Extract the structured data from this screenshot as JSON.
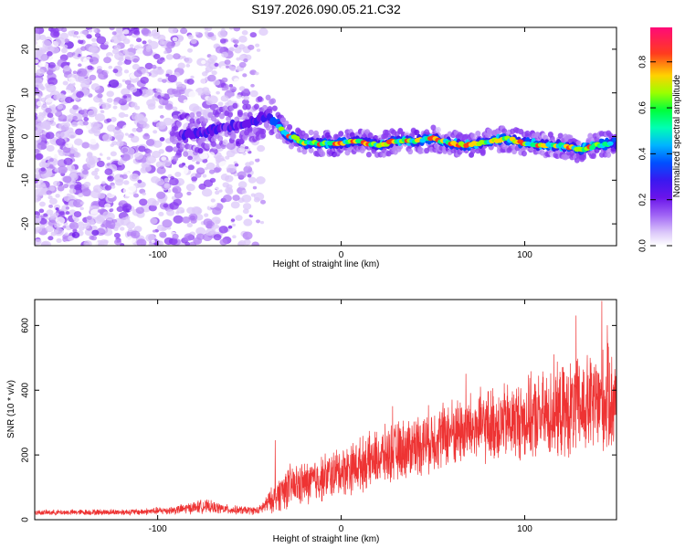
{
  "figure_title": "S197.2026.090.05.21.C32",
  "chart_data": [
    {
      "type": "heatmap",
      "title": "S197.2026.090.05.21.C32",
      "xlabel": "Height of straight line (km)",
      "ylabel": "Frequency (Hz)",
      "xlim": [
        -167,
        150
      ],
      "ylim": [
        -25,
        25
      ],
      "xticks": [
        -100,
        0,
        100
      ],
      "yticks": [
        -20,
        -10,
        0,
        10,
        20
      ],
      "colorbar": {
        "label": "Normalized spectral amplitude",
        "range": [
          0,
          0.95
        ],
        "ticks": [
          0,
          0.2,
          0.4,
          0.6,
          0.8
        ],
        "colors": [
          "#ffffff",
          "#dcc8fa",
          "#b482f5",
          "#8a3cf0",
          "#6a14ea",
          "#3a18f0",
          "#0050ff",
          "#00d2ff",
          "#00ff7a",
          "#9bff00",
          "#ffd200",
          "#ff3c1e",
          "#ff0a78"
        ]
      },
      "ridge": [
        {
          "x": -90,
          "f": 0
        },
        {
          "x": -75,
          "f": 1
        },
        {
          "x": -60,
          "f": 2.5
        },
        {
          "x": -48,
          "f": 3.5
        },
        {
          "x": -40,
          "f": 5
        },
        {
          "x": -35,
          "f": 3
        },
        {
          "x": -30,
          "f": 0.5
        },
        {
          "x": -20,
          "f": -1.5
        },
        {
          "x": -10,
          "f": -1.5
        },
        {
          "x": 0,
          "f": -1.5
        },
        {
          "x": 10,
          "f": -1.2
        },
        {
          "x": 20,
          "f": -2
        },
        {
          "x": 30,
          "f": -1
        },
        {
          "x": 40,
          "f": -1
        },
        {
          "x": 50,
          "f": -0.5
        },
        {
          "x": 60,
          "f": -1.5
        },
        {
          "x": 70,
          "f": -2
        },
        {
          "x": 80,
          "f": -1
        },
        {
          "x": 90,
          "f": -0.5
        },
        {
          "x": 100,
          "f": -1.5
        },
        {
          "x": 110,
          "f": -2
        },
        {
          "x": 120,
          "f": -2
        },
        {
          "x": 130,
          "f": -3
        },
        {
          "x": 140,
          "f": -2
        },
        {
          "x": 148,
          "f": -1.5
        }
      ]
    },
    {
      "type": "line",
      "xlabel": "Height of straight line (km)",
      "ylabel": "SNR (10 * v/v)",
      "xlim": [
        -167,
        150
      ],
      "ylim": [
        0,
        680
      ],
      "xticks": [
        -100,
        0,
        100
      ],
      "yticks": [
        0,
        200,
        400,
        600
      ],
      "color": "#ee3333",
      "envelope": [
        {
          "x": -167,
          "mean": 22,
          "spread": 8
        },
        {
          "x": -110,
          "mean": 24,
          "spread": 10
        },
        {
          "x": -90,
          "mean": 30,
          "spread": 14
        },
        {
          "x": -75,
          "mean": 42,
          "spread": 22
        },
        {
          "x": -60,
          "mean": 30,
          "spread": 14
        },
        {
          "x": -45,
          "mean": 28,
          "spread": 12
        },
        {
          "x": -38,
          "mean": 60,
          "spread": 40
        },
        {
          "x": -30,
          "mean": 100,
          "spread": 70
        },
        {
          "x": -20,
          "mean": 110,
          "spread": 70
        },
        {
          "x": 0,
          "mean": 150,
          "spread": 80
        },
        {
          "x": 20,
          "mean": 190,
          "spread": 90
        },
        {
          "x": 40,
          "mean": 230,
          "spread": 100
        },
        {
          "x": 60,
          "mean": 270,
          "spread": 110
        },
        {
          "x": 80,
          "mean": 290,
          "spread": 120
        },
        {
          "x": 100,
          "mean": 310,
          "spread": 130
        },
        {
          "x": 120,
          "mean": 330,
          "spread": 150
        },
        {
          "x": 140,
          "mean": 360,
          "spread": 170
        },
        {
          "x": 150,
          "mean": 370,
          "spread": 170
        }
      ],
      "peaks": [
        {
          "x": -36,
          "y": 245
        },
        {
          "x": 28,
          "y": 350
        },
        {
          "x": 68,
          "y": 450
        },
        {
          "x": 116,
          "y": 510
        },
        {
          "x": 128,
          "y": 630
        },
        {
          "x": 142,
          "y": 675
        },
        {
          "x": 145,
          "y": 600
        }
      ]
    }
  ]
}
